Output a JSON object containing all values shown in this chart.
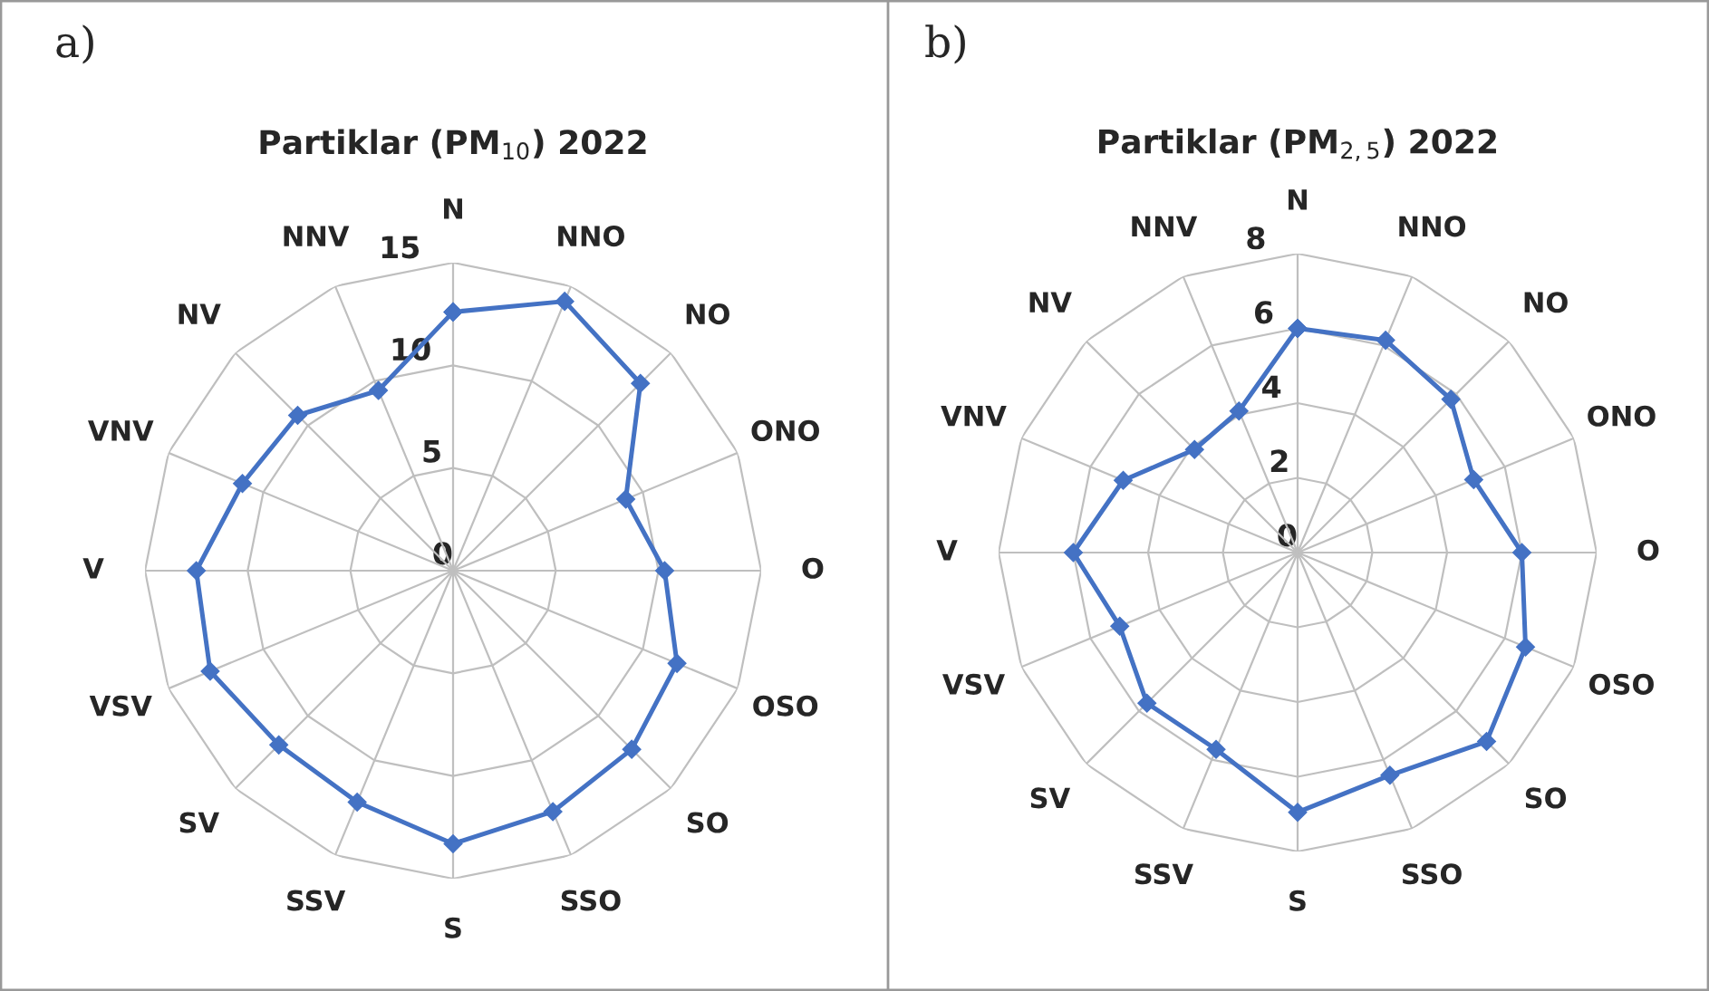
{
  "chart_data": [
    {
      "type": "radar",
      "title": "Partiklar (PM$_{10}$) 2022",
      "annotations": [
        "a)"
      ],
      "categories": [
        "N",
        "NNO",
        "NO",
        "ONO",
        "O",
        "OSO",
        "SO",
        "SSO",
        "S",
        "SSV",
        "SV",
        "VSV",
        "V",
        "VNV",
        "NV",
        "NNV"
      ],
      "ylim": [
        0,
        15
      ],
      "yticks": [
        0,
        5,
        10,
        15
      ],
      "grid": true,
      "marker": "diamond",
      "line_style": "solid",
      "series": [
        {
          "color": "#4472c4",
          "values": [
            12.6,
            14.2,
            12.9,
            9.1,
            10.3,
            11.8,
            12.3,
            12.7,
            13.3,
            12.2,
            12.0,
            12.8,
            12.5,
            11.1,
            10.7,
            9.5
          ]
        }
      ]
    },
    {
      "type": "radar",
      "title": "Partiklar (PM$_{2,5}$) 2022",
      "annotations": [
        "b)"
      ],
      "categories": [
        "N",
        "NNO",
        "NO",
        "ONO",
        "O",
        "OSO",
        "SO",
        "SSO",
        "S",
        "SSV",
        "SV",
        "VSV",
        "V",
        "VNV",
        "NV",
        "NNV"
      ],
      "ylim": [
        0,
        8
      ],
      "yticks": [
        0,
        2,
        4,
        6,
        8
      ],
      "grid": true,
      "marker": "diamond",
      "line_style": "solid",
      "series": [
        {
          "color": "#4472c4",
          "values": [
            6.0,
            6.15,
            5.8,
            5.1,
            6.0,
            6.6,
            7.15,
            6.45,
            6.95,
            5.7,
            5.7,
            5.15,
            6.0,
            5.05,
            3.9,
            4.1
          ]
        }
      ]
    }
  ]
}
